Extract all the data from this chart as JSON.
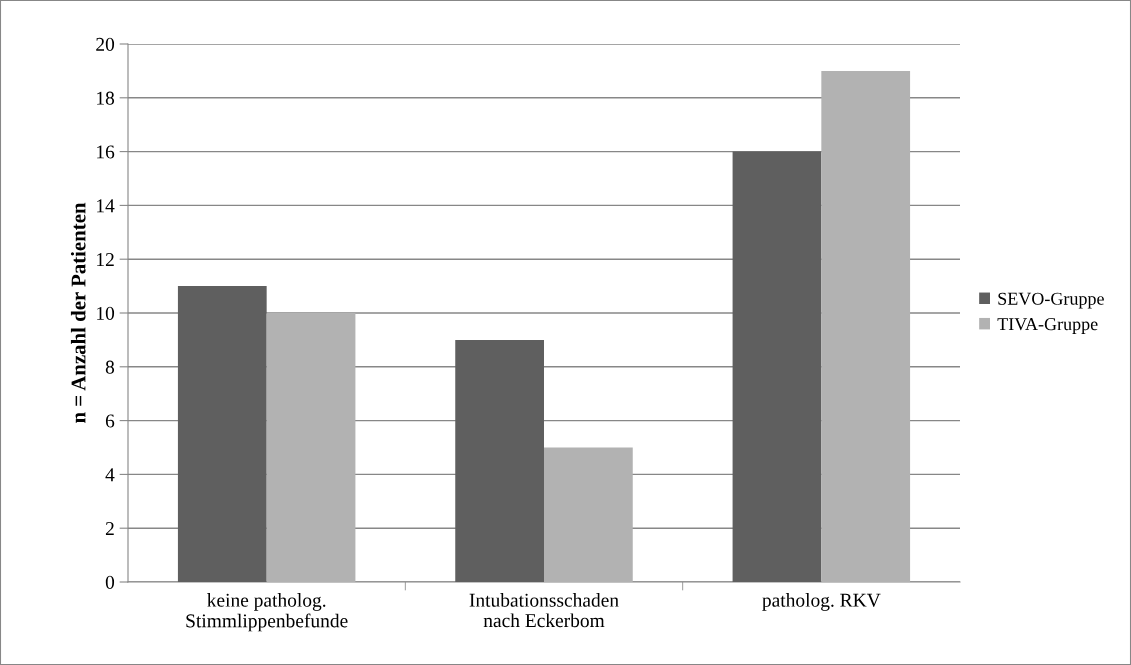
{
  "chart_data": {
    "type": "bar",
    "ylabel": "n = Anzahl der Patienten",
    "categories": [
      "keine patholog.\nStimmlippenbefunde",
      "Intubationsschaden\nnach Eckerbom",
      "patholog. RKV"
    ],
    "series": [
      {
        "name": "SEVO-Gruppe",
        "color": "#5f5f5f",
        "values": [
          11,
          9,
          16
        ]
      },
      {
        "name": "TIVA-Gruppe",
        "color": "#b2b2b2",
        "values": [
          10,
          5,
          19
        ]
      }
    ],
    "ylim": [
      0,
      20
    ],
    "yticks": [
      0,
      2,
      4,
      6,
      8,
      10,
      12,
      14,
      16,
      18,
      20
    ],
    "grid": "y",
    "legend": "right"
  }
}
